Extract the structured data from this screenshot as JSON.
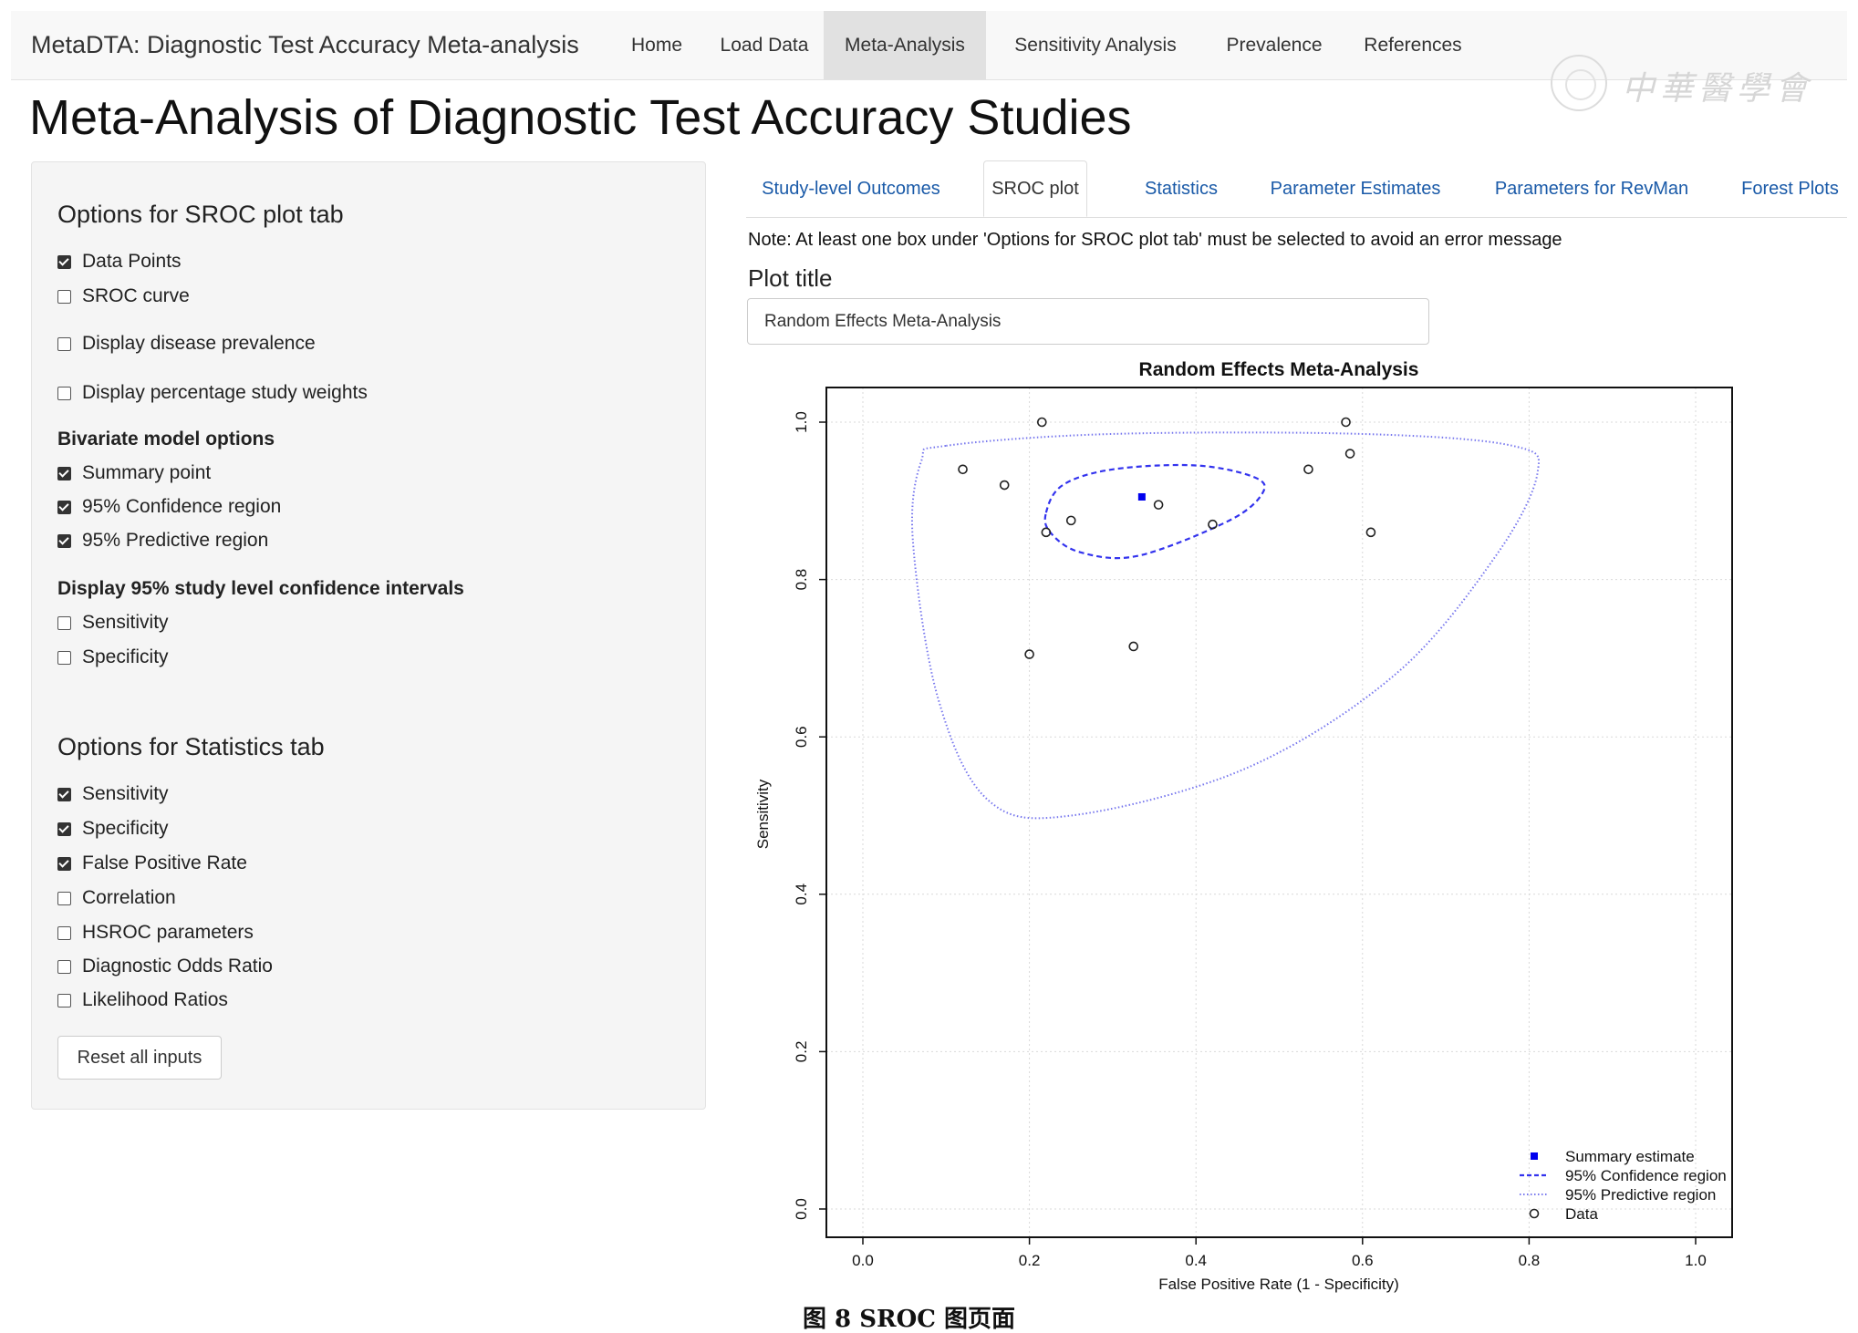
{
  "navbar": {
    "brand": "MetaDTA: Diagnostic Test Accuracy Meta-analysis",
    "items": [
      "Home",
      "Load Data",
      "Meta-Analysis",
      "Sensitivity Analysis",
      "Prevalence",
      "References"
    ],
    "active_item": "Meta-Analysis"
  },
  "watermark": {
    "text": "中華醫學會"
  },
  "page": {
    "title": "Meta-Analysis of Diagnostic Test Accuracy Studies"
  },
  "sidebar": {
    "sroc_heading": "Options for SROC plot tab",
    "sroc_options": [
      {
        "label": "Data Points",
        "checked": true
      },
      {
        "label": "SROC curve",
        "checked": false
      },
      {
        "label": "Display disease prevalence",
        "checked": false
      },
      {
        "label": "Display percentage study weights",
        "checked": false
      }
    ],
    "bivariate_heading": "Bivariate model options",
    "bivariate_options": [
      {
        "label": "Summary point",
        "checked": true
      },
      {
        "label": "95% Confidence region",
        "checked": true
      },
      {
        "label": "95% Predictive region",
        "checked": true
      }
    ],
    "ci_heading": "Display 95% study level confidence intervals",
    "ci_options": [
      {
        "label": "Sensitivity",
        "checked": false
      },
      {
        "label": "Specificity",
        "checked": false
      }
    ],
    "stats_heading": "Options for Statistics tab",
    "stats_options": [
      {
        "label": "Sensitivity",
        "checked": true
      },
      {
        "label": "Specificity",
        "checked": true
      },
      {
        "label": "False Positive Rate",
        "checked": true
      },
      {
        "label": "Correlation",
        "checked": false
      },
      {
        "label": "HSROC parameters",
        "checked": false
      },
      {
        "label": "Diagnostic Odds Ratio",
        "checked": false
      },
      {
        "label": "Likelihood Ratios",
        "checked": false
      }
    ],
    "reset_label": "Reset all inputs"
  },
  "tabs": {
    "items": [
      "Study-level Outcomes",
      "SROC plot",
      "Statistics",
      "Parameter Estimates",
      "Parameters for RevMan",
      "Forest Plots"
    ],
    "active": "SROC plot"
  },
  "main": {
    "note": "Note: At least one box under 'Options for SROC plot tab' must be selected to avoid an error message",
    "plot_title_label": "Plot title",
    "plot_title_value": "Random Effects Meta-Analysis"
  },
  "caption": "图 8   SROC 图页面",
  "chart_data": {
    "type": "scatter",
    "title": "Random Effects Meta-Analysis",
    "xlabel": "False Positive Rate (1 - Specificity)",
    "ylabel": "Sensitivity",
    "xlim": [
      0.0,
      1.0
    ],
    "ylim": [
      0.0,
      1.0
    ],
    "xticks": [
      "0.0",
      "0.2",
      "0.4",
      "0.6",
      "0.8",
      "1.0"
    ],
    "yticks": [
      "0.0",
      "0.2",
      "0.4",
      "0.6",
      "0.8",
      "1.0"
    ],
    "grid": true,
    "legend_position": "bottom-right",
    "series": [
      {
        "name": "Data",
        "marker": "open-circle",
        "points": [
          {
            "x": 0.12,
            "y": 0.94
          },
          {
            "x": 0.17,
            "y": 0.92
          },
          {
            "x": 0.215,
            "y": 1.0
          },
          {
            "x": 0.22,
            "y": 0.86
          },
          {
            "x": 0.25,
            "y": 0.875
          },
          {
            "x": 0.355,
            "y": 0.895
          },
          {
            "x": 0.42,
            "y": 0.87
          },
          {
            "x": 0.535,
            "y": 0.94
          },
          {
            "x": 0.58,
            "y": 1.0
          },
          {
            "x": 0.585,
            "y": 0.96
          },
          {
            "x": 0.61,
            "y": 0.86
          },
          {
            "x": 0.2,
            "y": 0.705
          },
          {
            "x": 0.325,
            "y": 0.715
          }
        ]
      },
      {
        "name": "Summary estimate",
        "marker": "filled-square",
        "color": "#0000ee",
        "points": [
          {
            "x": 0.335,
            "y": 0.905
          }
        ]
      },
      {
        "name": "95% Confidence region",
        "style": "dashed",
        "color": "#3333ee",
        "points": [
          {
            "x": 0.22,
            "y": 0.885
          },
          {
            "x": 0.24,
            "y": 0.92
          },
          {
            "x": 0.3,
            "y": 0.94
          },
          {
            "x": 0.4,
            "y": 0.945
          },
          {
            "x": 0.47,
            "y": 0.93
          },
          {
            "x": 0.48,
            "y": 0.91
          },
          {
            "x": 0.44,
            "y": 0.875
          },
          {
            "x": 0.33,
            "y": 0.83
          },
          {
            "x": 0.26,
            "y": 0.835
          },
          {
            "x": 0.225,
            "y": 0.86
          }
        ]
      },
      {
        "name": "95% Predictive region",
        "style": "dotted",
        "color": "#7777ee",
        "points": [
          {
            "x": 0.1,
            "y": 0.97
          },
          {
            "x": 0.3,
            "y": 0.985
          },
          {
            "x": 0.6,
            "y": 0.985
          },
          {
            "x": 0.78,
            "y": 0.97
          },
          {
            "x": 0.81,
            "y": 0.935
          },
          {
            "x": 0.76,
            "y": 0.83
          },
          {
            "x": 0.64,
            "y": 0.68
          },
          {
            "x": 0.46,
            "y": 0.56
          },
          {
            "x": 0.25,
            "y": 0.5
          },
          {
            "x": 0.15,
            "y": 0.52
          },
          {
            "x": 0.09,
            "y": 0.65
          },
          {
            "x": 0.06,
            "y": 0.85
          },
          {
            "x": 0.07,
            "y": 0.95
          }
        ]
      }
    ]
  }
}
